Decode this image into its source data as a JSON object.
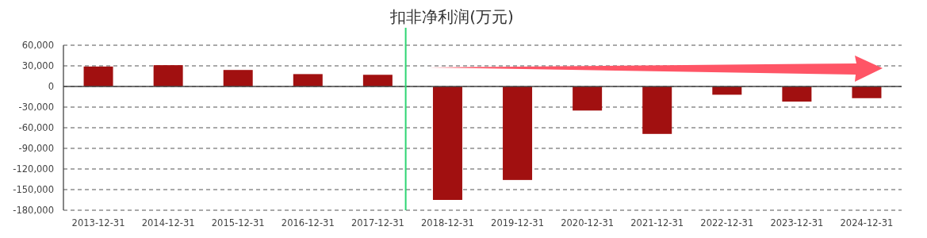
{
  "chart_data": {
    "type": "bar",
    "title": "扣非净利润(万元)",
    "categories": [
      "2013-12-31",
      "2014-12-31",
      "2015-12-31",
      "2016-12-31",
      "2017-12-31",
      "2018-12-31",
      "2019-12-31",
      "2020-12-31",
      "2021-12-31",
      "2022-12-31",
      "2023-12-31",
      "2024-12-31"
    ],
    "values": [
      29000,
      31000,
      24000,
      18000,
      17000,
      -165000,
      -136000,
      -35000,
      -69000,
      -12000,
      -22000,
      -17000
    ],
    "color": "#a11010",
    "ylim": [
      -180000,
      60000
    ],
    "yticks": [
      {
        "value": 60000,
        "label": "60,000"
      },
      {
        "value": 30000,
        "label": "30,000"
      },
      {
        "value": 0,
        "label": "0"
      },
      {
        "value": -30000,
        "label": "-30,000"
      },
      {
        "value": -60000,
        "label": "-60,000"
      },
      {
        "value": -90000,
        "label": "-90,000"
      },
      {
        "value": -120000,
        "label": "-120,000"
      },
      {
        "value": -150000,
        "label": "-150,000"
      },
      {
        "value": -180000,
        "label": "-180,000"
      }
    ],
    "grid": "y",
    "ref_lines": [
      {
        "axis": "x",
        "value": "2017-12-31",
        "color": "#2ed573",
        "line_style": "solid"
      }
    ]
  }
}
